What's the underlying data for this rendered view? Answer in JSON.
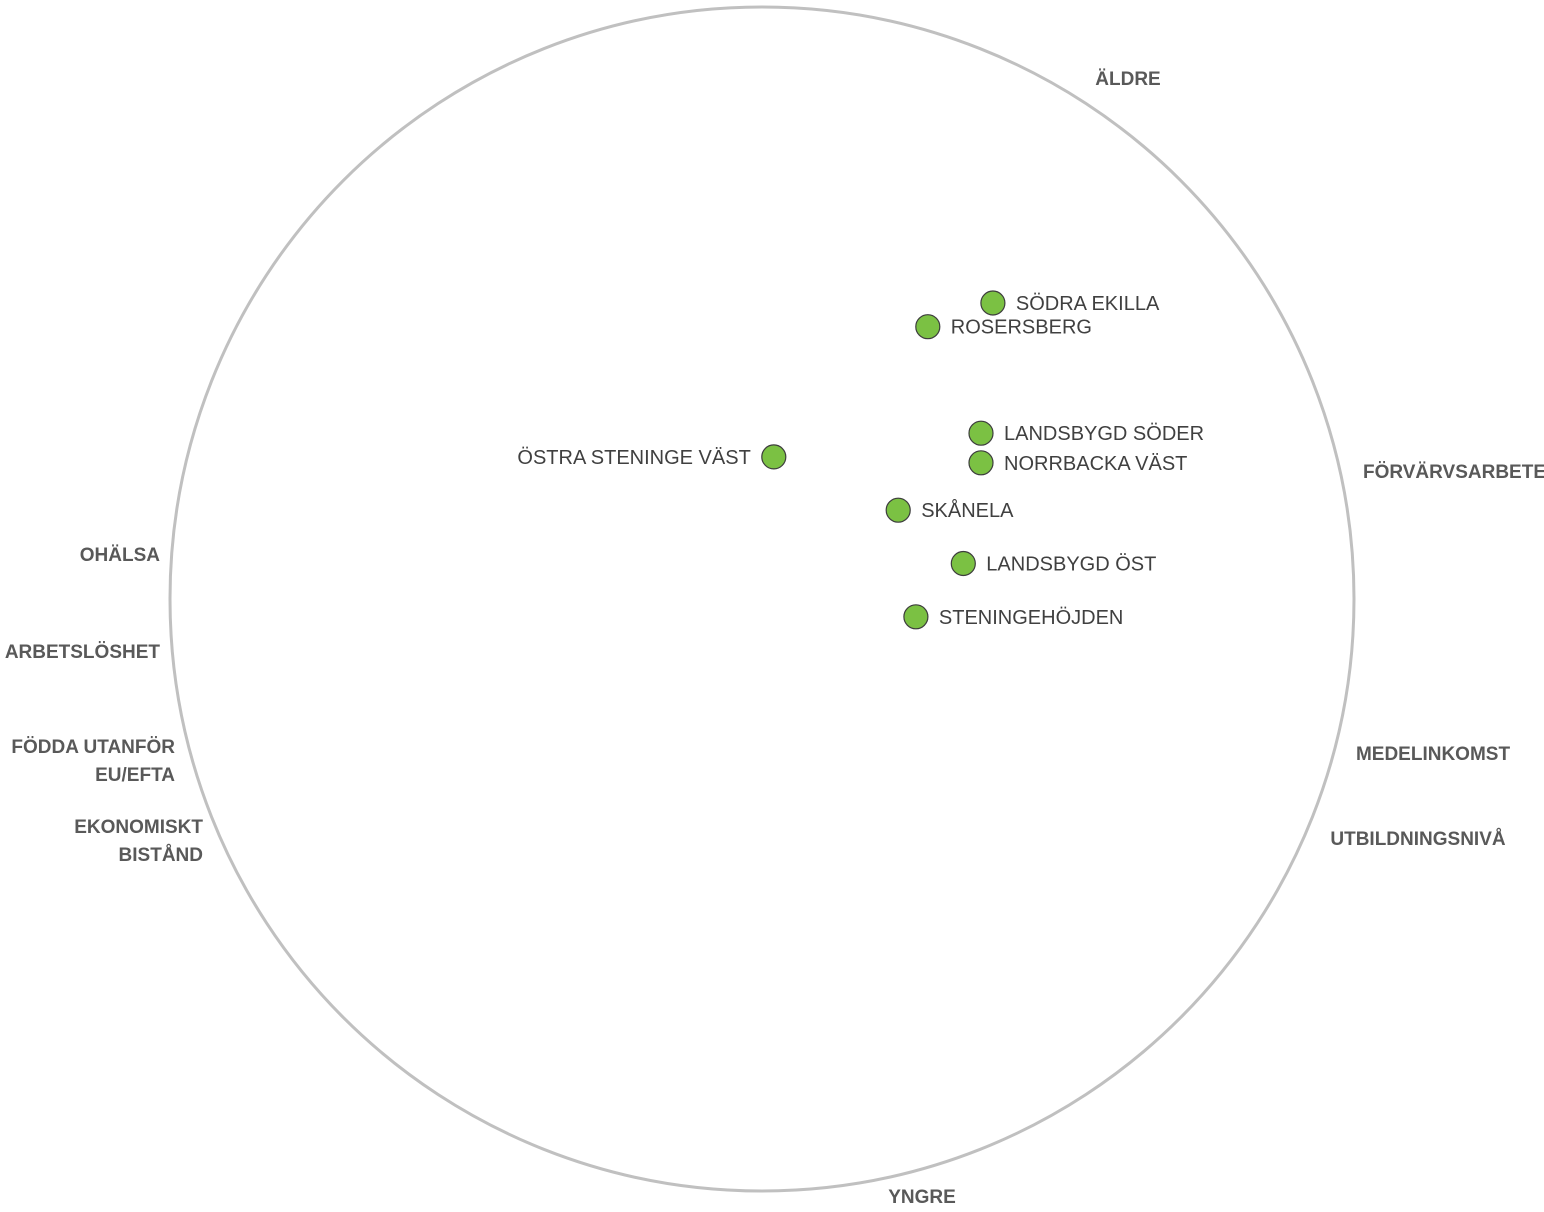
{
  "chart_data": {
    "type": "scatter",
    "title": "",
    "grid": false,
    "legend": "none",
    "colors": {
      "point_fill": "#7bc143",
      "point_stroke": "#3d3d3d",
      "circle_stroke": "#c0c0c0",
      "axis_label": "#595959",
      "point_label": "#404040"
    },
    "axis_labels": [
      {
        "id": "aldre",
        "lines": [
          "ÄLDRE"
        ]
      },
      {
        "id": "forvarvsarbete",
        "lines": [
          "FÖRVÄRVSARBETE"
        ]
      },
      {
        "id": "medelinkomst",
        "lines": [
          "MEDELINKOMST"
        ]
      },
      {
        "id": "utbildningsniva",
        "lines": [
          "UTBILDNINGSNIVÅ"
        ]
      },
      {
        "id": "yngre",
        "lines": [
          "YNGRE"
        ]
      },
      {
        "id": "ekonomiskt-bistand",
        "lines": [
          "EKONOMISKT",
          "BISTÅND"
        ]
      },
      {
        "id": "fodda-utanfor",
        "lines": [
          "FÖDDA UTANFÖR",
          "EU/EFTA"
        ]
      },
      {
        "id": "arbetsloshet",
        "lines": [
          "ARBETSLÖSHET"
        ]
      },
      {
        "id": "ohalsa",
        "lines": [
          "OHÄLSA"
        ]
      }
    ],
    "points": [
      {
        "name": "SÖDRA EKILLA",
        "x": 0.39,
        "y": 0.5
      },
      {
        "name": "ROSERSBERG",
        "x": 0.28,
        "y": 0.46
      },
      {
        "name": "LANDSBYGD SÖDER",
        "x": 0.37,
        "y": 0.28
      },
      {
        "name": "NORRBACKA VÄST",
        "x": 0.37,
        "y": 0.23
      },
      {
        "name": "ÖSTRA STENINGE VÄST",
        "x": 0.02,
        "y": 0.24
      },
      {
        "name": "SKÅNELA",
        "x": 0.23,
        "y": 0.15
      },
      {
        "name": "LANDSBYGD ÖST",
        "x": 0.34,
        "y": 0.06
      },
      {
        "name": "STENINGEHÖJDEN",
        "x": 0.26,
        "y": -0.03
      }
    ]
  }
}
